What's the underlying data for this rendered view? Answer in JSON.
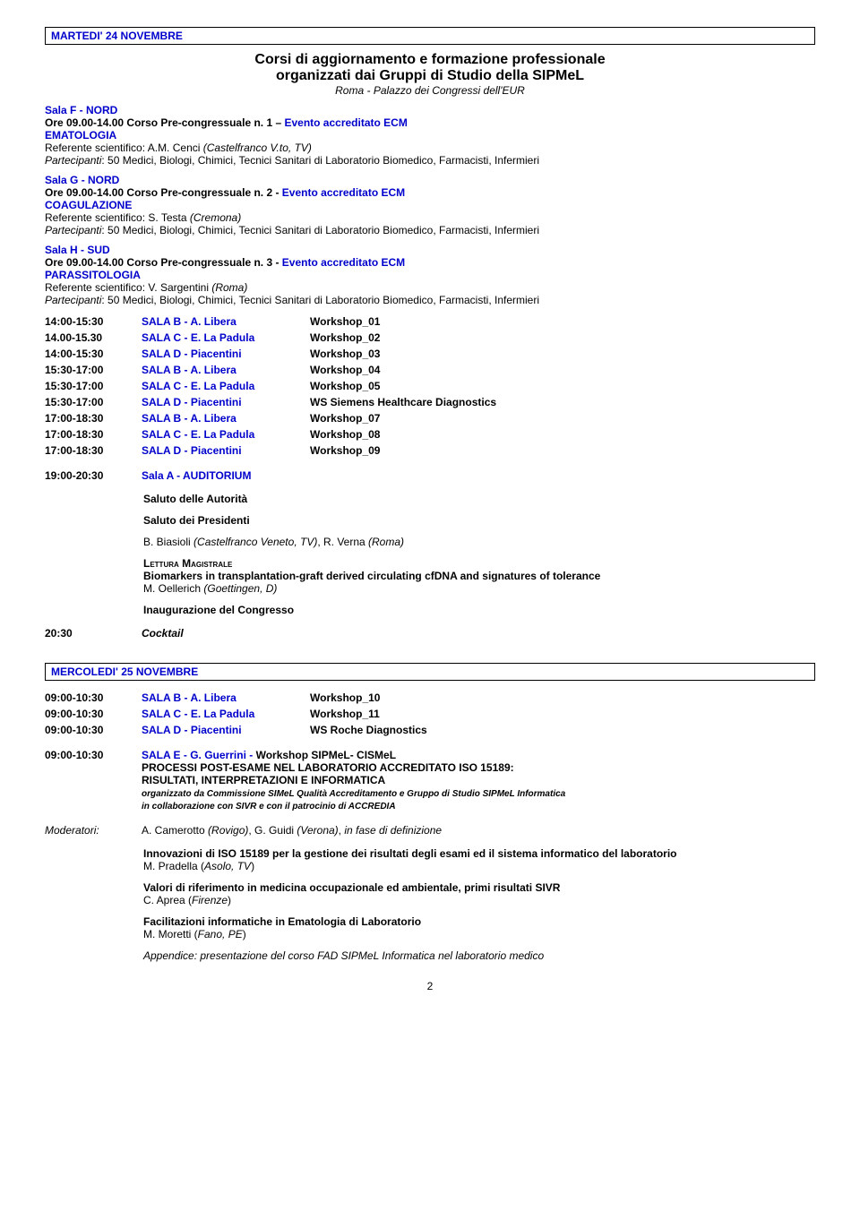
{
  "day1_header": "MARTEDI' 24 NOVEMBRE",
  "main_title_l1": "Corsi di aggiornamento e formazione professionale",
  "main_title_l2": "organizzati dai Gruppi di Studio della SIPMeL",
  "main_title_sub": "Roma - Palazzo dei Congressi dell'EUR",
  "salaF": "Sala F - NORD",
  "salaF_time": "Ore 09.00-14.00 Corso Pre-congressuale n. 1 – ",
  "salaF_ecm": "Evento accreditato ECM",
  "salaF_topic": "EMATOLOGIA",
  "salaF_ref": "Referente scientifico: A.M. Cenci ",
  "salaF_ref_loc": "(Castelfranco V.to, TV)",
  "salaF_part": "Partecipanti",
  "salaF_part_txt": ": 50 Medici, Biologi, Chimici, Tecnici Sanitari di Laboratorio Biomedico, Farmacisti, Infermieri",
  "salaG": "Sala G - NORD",
  "salaG_time": "Ore 09.00-14.00 Corso Pre-congressuale n. 2 - ",
  "salaG_ecm": "Evento accreditato ECM",
  "salaG_topic": "COAGULAZIONE",
  "salaG_ref": "Referente scientifico: S. Testa ",
  "salaG_ref_loc": "(Cremona)",
  "salaH": "Sala H - SUD",
  "salaH_time": "Ore 09.00-14.00 Corso Pre-congressuale n. 3 - ",
  "salaH_ecm": "Evento accreditato ECM",
  "salaH_topic": "PARASSITOLOGIA",
  "salaH_ref": "Referente scientifico: V. Sargentini ",
  "salaH_ref_loc": "(Roma)",
  "sched1": [
    [
      "14:00-15:30",
      "SALA B - A. Libera",
      "Workshop_01"
    ],
    [
      "14.00-15.30",
      "SALA C - E. La Padula",
      "Workshop_02"
    ],
    [
      "14:00-15:30",
      "SALA D -  Piacentini",
      "Workshop_03"
    ],
    [
      "15:30-17:00",
      "SALA B - A. Libera",
      "Workshop_04"
    ],
    [
      "15:30-17:00",
      "SALA C - E. La Padula",
      "Workshop_05"
    ],
    [
      "15:30-17:00",
      "SALA D -  Piacentini",
      "WS Siemens Healthcare Diagnostics"
    ],
    [
      "17:00-18:30",
      "SALA B - A. Libera",
      "Workshop_07"
    ],
    [
      "17:00-18:30",
      "SALA C - E. La Padula",
      "Workshop_08"
    ],
    [
      "17:00-18:30",
      "SALA D -  Piacentini",
      "Workshop_09"
    ]
  ],
  "eve_time": "19:00-20:30",
  "eve_room": "Sala A - AUDITORIUM",
  "saluto1": "Saluto delle Autorità",
  "saluto2": "Saluto dei Presidenti",
  "presidents": "B. Biasioli (Castelfranco Veneto, TV), R. Verna (Roma)",
  "lettura_lbl": "Lettura Magistrale",
  "lettura_title": "Biomarkers in transplantation-graft derived circulating cfDNA and signatures of tolerance",
  "lettura_speaker": "M. Oellerich ",
  "lettura_loc": "(Goettingen, D)",
  "inaugurazione": "Inaugurazione del Congresso",
  "cocktail_time": "20:30",
  "cocktail_lbl": "Cocktail",
  "day2_header": "MERCOLEDI' 25 NOVEMBRE",
  "sched2": [
    [
      "09:00-10:30",
      "SALA B - A. Libera",
      "Workshop_10"
    ],
    [
      "09:00-10:30",
      "SALA C - E. La Padula",
      "Workshop_11"
    ],
    [
      "09:00-10:30",
      "SALA D -  Piacentini",
      "WS Roche Diagnostics"
    ]
  ],
  "ws_time": "09:00-10:30",
  "ws_room": "SALA E - G. Guerrini - ",
  "ws_title": "Workshop SIPMeL- CISMeL",
  "ws_l2": "PROCESSI POST-ESAME NEL LABORATORIO ACCREDITATO ISO 15189:",
  "ws_l3": "RISULTATI, INTERPRETAZIONI E INFORMATICA",
  "ws_small1": "organizzato da Commissione SIMeL Qualità Accreditamento e Gruppo di Studio SIPMeL Informatica",
  "ws_small2": "in collaborazione con SIVR e con il patrocinio di ACCREDIA",
  "mod_lbl": "Moderatori:",
  "mod_names": "A. Camerotto (Rovigo), G. Guidi (Verona), in fase di definizione",
  "talk1_t": "Innovazioni di ISO 15189 per la gestione dei risultati degli esami ed il sistema informatico del laboratorio",
  "talk1_sp": "M. Pradella (",
  "talk1_loc": "Asolo, TV",
  "talk2_t": "Valori di riferimento in medicina occupazionale ed ambientale, primi risultati SIVR",
  "talk2_sp": "C. Aprea (",
  "talk2_loc": "Firenze",
  "talk3_t": "Facilitazioni informatiche in Ematologia di Laboratorio",
  "talk3_sp": "M. Moretti (",
  "talk3_loc": "Fano, PE",
  "appendix": "Appendice: presentazione del corso FAD SIPMeL Informatica nel laboratorio medico",
  "page_num": "2"
}
